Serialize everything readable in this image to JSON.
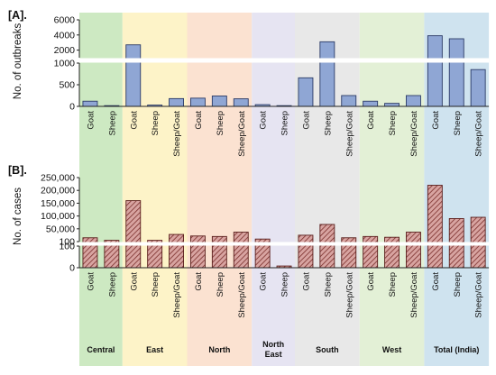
{
  "chart_data": [
    {
      "panel_label": "[A].",
      "type": "bar",
      "ylabel": "No. of outbreaks",
      "axis_break": true,
      "ylim_lower": [
        0,
        1000
      ],
      "ylim_upper": [
        1000,
        6000
      ],
      "yticks_lower": [
        "0",
        "500",
        "1000"
      ],
      "yticks_upper": [
        "2000",
        "4000",
        "6000"
      ],
      "categories": [
        "Goat",
        "Sheep",
        "Goat",
        "Sheep",
        "Sheep/Goat",
        "Goat",
        "Sheep",
        "Sheep/Goat",
        "Goat",
        "Sheep",
        "Goat",
        "Sheep",
        "Sheep/Goat",
        "Goat",
        "Sheep",
        "Sheep/Goat",
        "Goat",
        "Sheep",
        "Sheep/Goat"
      ],
      "values": [
        120,
        5,
        2700,
        30,
        180,
        190,
        240,
        175,
        40,
        3,
        660,
        3100,
        250,
        120,
        70,
        250,
        3900,
        3500,
        850
      ],
      "bar_color": "#8fa6d4"
    },
    {
      "panel_label": "[B].",
      "type": "bar",
      "ylabel": "No. of cases",
      "axis_break": true,
      "ylim_lower": [
        0,
        100
      ],
      "ylim_upper": [
        100,
        250000
      ],
      "yticks_lower": [
        "0",
        "100"
      ],
      "yticks_upper": [
        "100",
        "50,000",
        "100,000",
        "150,000",
        "200,000",
        "250,000"
      ],
      "categories": [
        "Goat",
        "Sheep",
        "Goat",
        "Sheep",
        "Sheep/Goat",
        "Goat",
        "Sheep",
        "Sheep/Goat",
        "Goat",
        "Sheep",
        "Goat",
        "Sheep",
        "Sheep/Goat",
        "Goat",
        "Sheep",
        "Sheep/Goat",
        "Goat",
        "Sheep",
        "Sheep/Goat"
      ],
      "values": [
        15000,
        5000,
        160000,
        5000,
        28000,
        22000,
        20000,
        37000,
        10000,
        8,
        25000,
        67000,
        15000,
        20000,
        17000,
        37000,
        220000,
        90000,
        95000
      ],
      "bar_color": "#b35450"
    }
  ],
  "regions": [
    {
      "label": "Central",
      "count": 2,
      "bg": "#cde9c2"
    },
    {
      "label": "East",
      "count": 3,
      "bg": "#fdf3c8"
    },
    {
      "label": "North",
      "count": 3,
      "bg": "#fbe2d1"
    },
    {
      "label": "North\nEast",
      "count": 2,
      "bg": "#e6e4f2"
    },
    {
      "label": "South",
      "count": 3,
      "bg": "#e8e8e8"
    },
    {
      "label": "West",
      "count": 3,
      "bg": "#e3f0d6"
    },
    {
      "label": "Total (India)",
      "count": 3,
      "bg": "#cfe3ef"
    }
  ]
}
